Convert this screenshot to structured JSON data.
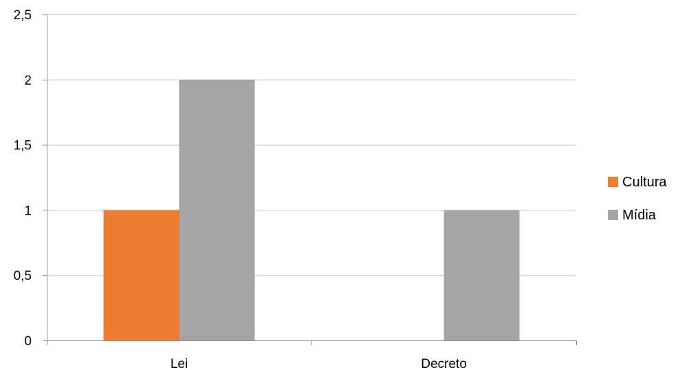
{
  "chart_data": {
    "type": "bar",
    "categories": [
      "Lei",
      "Decreto"
    ],
    "series": [
      {
        "name": "Cultura",
        "color": "#ED7D31",
        "values": [
          1,
          0
        ]
      },
      {
        "name": "Mídia",
        "color": "#A5A5A5",
        "values": [
          2,
          1
        ]
      }
    ],
    "ylim": [
      0,
      2.5
    ],
    "yticks": [
      0,
      0.5,
      1,
      1.5,
      2,
      2.5
    ],
    "ytick_labels": [
      "0",
      "0,5",
      "1",
      "1,5",
      "2",
      "2,5"
    ],
    "grid": true,
    "legend_position": "right",
    "title": "",
    "xlabel": "",
    "ylabel": ""
  }
}
